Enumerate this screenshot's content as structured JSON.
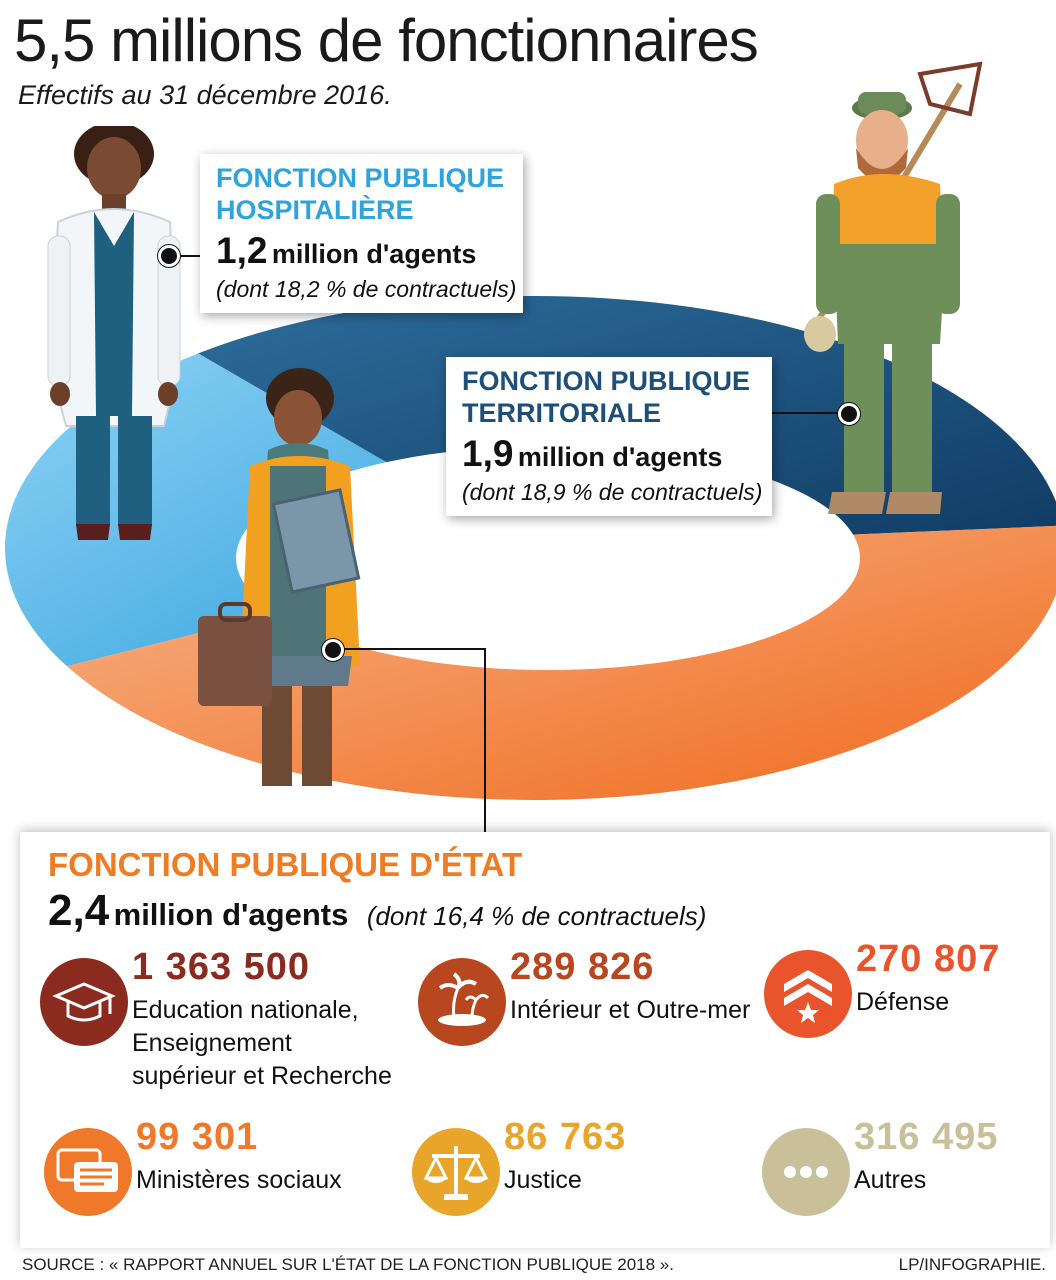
{
  "title": "5,5 millions de fonctionnaires",
  "subtitle": "Effectifs au 31 décembre 2016.",
  "hospitaliere": {
    "name": "FONCTION PUBLIQUE HOSPITALIÈRE",
    "big": "1,2",
    "unit": "million d'agents",
    "note": "(dont 18,2 % de contractuels)"
  },
  "territoriale": {
    "name": "FONCTION PUBLIQUE TERRITORIALE",
    "big": "1,9",
    "unit": "million d'agents",
    "note": "(dont 18,9 % de contractuels)"
  },
  "etat": {
    "name": "FONCTION PUBLIQUE D'ÉTAT",
    "big": "2,4",
    "unit": "million d'agents",
    "note": "(dont 16,4 % de contractuels)",
    "items": [
      {
        "value": "1 363 500",
        "label": "Education nationale, Enseignement supérieur et Recherche",
        "color": "#8b2a1e",
        "icon": "graduation-cap-icon"
      },
      {
        "value": "289 826",
        "label": "Intérieur et Outre-mer",
        "color": "#b8461f",
        "icon": "palm-island-icon"
      },
      {
        "value": "270 807",
        "label": "Défense",
        "color": "#e9542c",
        "icon": "military-rank-icon"
      },
      {
        "value": "99 301",
        "label": "Ministères sociaux",
        "color": "#f0782a",
        "icon": "speech-bubbles-icon"
      },
      {
        "value": "86 763",
        "label": "Justice",
        "color": "#e8a52a",
        "icon": "scales-of-justice-icon"
      },
      {
        "value": "316 495",
        "label": "Autres",
        "color": "#c9c09a",
        "icon": "ellipsis-icon"
      }
    ]
  },
  "chart_data": {
    "type": "pie",
    "title": "5,5 millions de fonctionnaires",
    "subtitle": "Effectifs au 31 décembre 2016.",
    "categories": [
      "FONCTION PUBLIQUE HOSPITALIÈRE",
      "FONCTION PUBLIQUE TERRITORIALE",
      "FONCTION PUBLIQUE D'ÉTAT"
    ],
    "values": [
      1.2,
      1.9,
      2.4
    ],
    "unit": "million d'agents",
    "contractuels_pct": [
      18.2,
      18.9,
      16.4
    ],
    "colors": [
      "#5cb8e8",
      "#1e4f78",
      "#f0782a"
    ],
    "breakdown_etat": {
      "categories": [
        "Education nationale, Enseignement supérieur et Recherche",
        "Intérieur et Outre-mer",
        "Défense",
        "Ministères sociaux",
        "Justice",
        "Autres"
      ],
      "values": [
        1363500,
        289826,
        270807,
        99301,
        86763,
        316495
      ]
    }
  },
  "footer": {
    "source": "SOURCE : « RAPPORT ANNUEL SUR L'ÉTAT DE LA FONCTION PUBLIQUE 2018 ».",
    "credit": "LP/INFOGRAPHIE."
  }
}
